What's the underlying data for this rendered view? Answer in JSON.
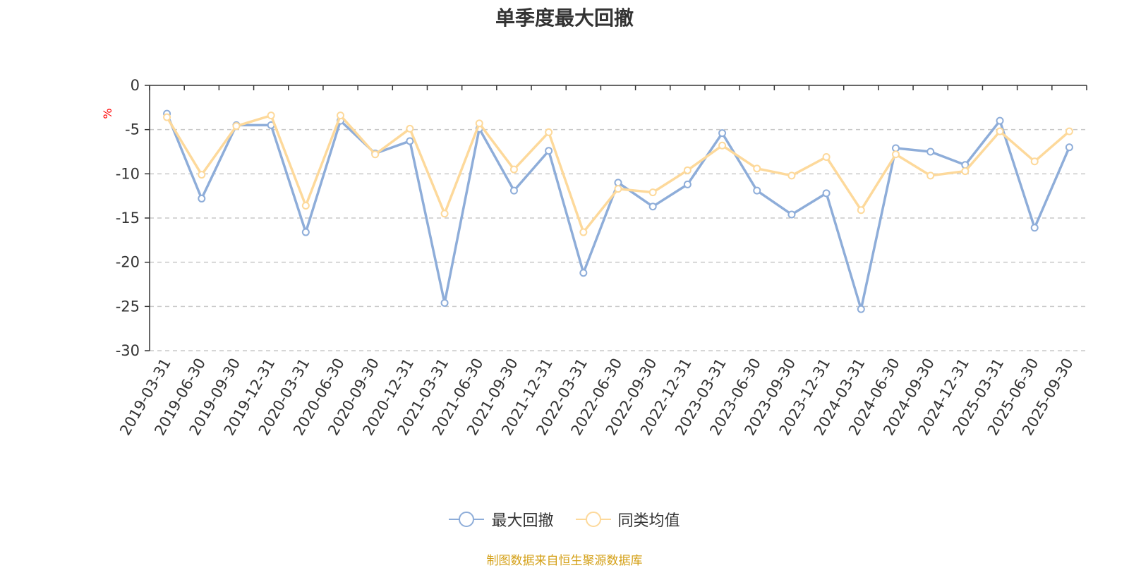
{
  "title": "单季度最大回撤",
  "source_note": "制图数据来自恒生聚源数据库",
  "colors": {
    "series_max_drawdown": "#8eadd9",
    "series_peer_average": "#fdd99b",
    "source_note": "#d4a017",
    "unit": "#ff0000",
    "axis": "#333333",
    "grid": "#c8c8c8"
  },
  "legend": {
    "items": [
      {
        "name": "最大回撤",
        "icon": "circle-line-icon"
      },
      {
        "name": "同类均值",
        "icon": "circle-line-icon"
      }
    ],
    "position": "bottom-center"
  },
  "chart_data": {
    "type": "line",
    "title": "单季度最大回撤",
    "ylabel": "%",
    "xlabel": "",
    "ylim": [
      -30,
      0
    ],
    "yticks": [
      0,
      -5,
      -10,
      -15,
      -20,
      -25,
      -30
    ],
    "grid": "horizontal-dashed",
    "legend_placement": "bottom",
    "categories": [
      "2019-03-31",
      "2019-06-30",
      "2019-09-30",
      "2019-12-31",
      "2020-03-31",
      "2020-06-30",
      "2020-09-30",
      "2020-12-31",
      "2021-03-31",
      "2021-06-30",
      "2021-09-30",
      "2021-12-31",
      "2022-03-31",
      "2022-06-30",
      "2022-09-30",
      "2022-12-31",
      "2023-03-31",
      "2023-06-30",
      "2023-09-30",
      "2023-12-31",
      "2024-03-31",
      "2024-06-30",
      "2024-09-30",
      "2024-12-31",
      "2025-03-31",
      "2025-06-30",
      "2025-09-30"
    ],
    "series": [
      {
        "name": "最大回撤",
        "values": [
          -3.2,
          -12.8,
          -4.5,
          -4.5,
          -16.6,
          -4.0,
          -7.7,
          -6.3,
          -24.6,
          -4.9,
          -11.9,
          -7.4,
          -21.2,
          -11.0,
          -13.7,
          -11.2,
          -5.4,
          -11.9,
          -14.6,
          -12.2,
          -25.3,
          -7.1,
          -7.5,
          -9.0,
          -4.0,
          -16.1,
          -7.0
        ]
      },
      {
        "name": "同类均值",
        "values": [
          -3.6,
          -10.1,
          -4.6,
          -3.4,
          -13.6,
          -3.4,
          -7.8,
          -4.9,
          -14.5,
          -4.3,
          -9.5,
          -5.3,
          -16.6,
          -11.7,
          -12.1,
          -9.6,
          -6.8,
          -9.4,
          -10.2,
          -8.1,
          -14.1,
          -7.8,
          -10.2,
          -9.7,
          -5.2,
          -8.6,
          -5.2
        ]
      }
    ]
  }
}
